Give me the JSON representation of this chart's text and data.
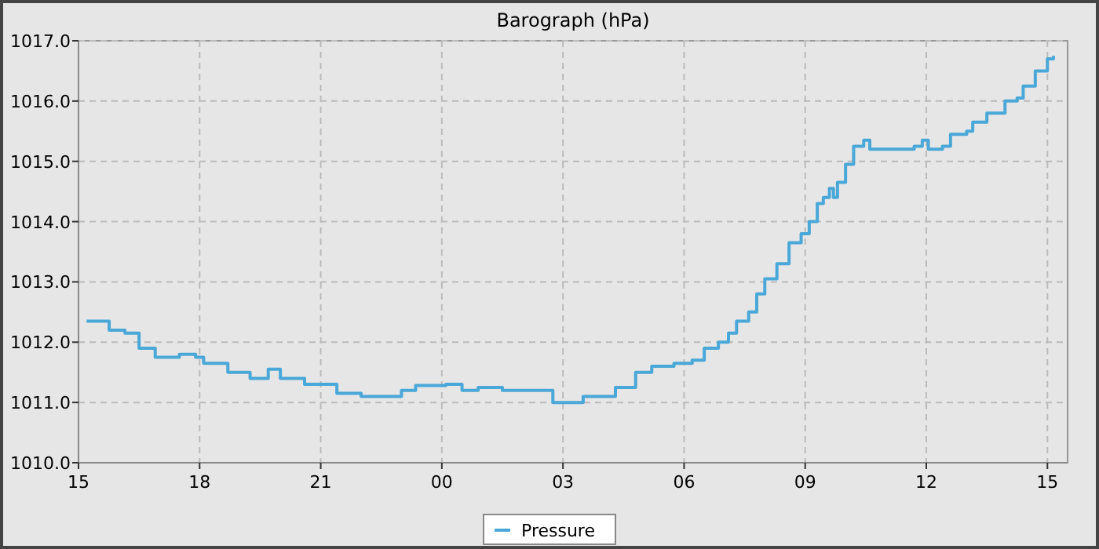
{
  "chart_data": {
    "type": "step",
    "title": "Barograph (hPa)",
    "xlim": [
      15,
      39.5
    ],
    "xticks": [
      {
        "value": 15,
        "label": "15"
      },
      {
        "value": 18,
        "label": "18"
      },
      {
        "value": 21,
        "label": "21"
      },
      {
        "value": 24,
        "label": "00"
      },
      {
        "value": 27,
        "label": "03"
      },
      {
        "value": 30,
        "label": "06"
      },
      {
        "value": 33,
        "label": "09"
      },
      {
        "value": 36,
        "label": "12"
      },
      {
        "value": 39,
        "label": "15"
      }
    ],
    "ylim": [
      1010,
      1017
    ],
    "yticks": [
      {
        "value": 1010,
        "label": "1010.0"
      },
      {
        "value": 1011,
        "label": "1011.0"
      },
      {
        "value": 1012,
        "label": "1012.0"
      },
      {
        "value": 1013,
        "label": "1013.0"
      },
      {
        "value": 1014,
        "label": "1014.0"
      },
      {
        "value": 1015,
        "label": "1015.0"
      },
      {
        "value": 1016,
        "label": "1016.0"
      },
      {
        "value": 1017,
        "label": "1017.0"
      }
    ],
    "grid": true,
    "legend": "bottom",
    "marker": "none",
    "line_style": "solid",
    "series": [
      {
        "name": "Pressure",
        "color": "#4aa8d8",
        "x": [
          15.2,
          15.76,
          16.15,
          16.5,
          16.9,
          17.5,
          17.9,
          18.1,
          18.7,
          19.25,
          19.7,
          20.0,
          20.6,
          21.2,
          21.4,
          22.0,
          22.6,
          23.0,
          23.35,
          24.1,
          24.5,
          24.9,
          25.5,
          26.45,
          26.75,
          27.05,
          27.5,
          28.0,
          28.3,
          28.8,
          29.2,
          29.75,
          30.2,
          30.5,
          30.85,
          31.1,
          31.3,
          31.6,
          31.8,
          32.0,
          32.3,
          32.6,
          32.9,
          33.1,
          33.3,
          33.45,
          33.6,
          33.7,
          33.8,
          34.0,
          34.2,
          34.45,
          34.6,
          35.2,
          35.7,
          35.9,
          36.05,
          36.4,
          36.6,
          37.0,
          37.15,
          37.5,
          37.95,
          38.25,
          38.4,
          38.7,
          39.0,
          39.15
        ],
        "values": [
          1012.35,
          1012.2,
          1012.15,
          1011.9,
          1011.75,
          1011.8,
          1011.75,
          1011.65,
          1011.5,
          1011.4,
          1011.55,
          1011.4,
          1011.3,
          1011.3,
          1011.15,
          1011.1,
          1011.1,
          1011.2,
          1011.28,
          1011.3,
          1011.2,
          1011.25,
          1011.2,
          1011.2,
          1011.0,
          1011.0,
          1011.1,
          1011.1,
          1011.25,
          1011.5,
          1011.6,
          1011.65,
          1011.7,
          1011.9,
          1012.0,
          1012.15,
          1012.35,
          1012.5,
          1012.8,
          1013.05,
          1013.3,
          1013.65,
          1013.8,
          1014.0,
          1014.3,
          1014.4,
          1014.55,
          1014.4,
          1014.65,
          1014.95,
          1015.25,
          1015.35,
          1015.2,
          1015.2,
          1015.25,
          1015.35,
          1015.2,
          1015.25,
          1015.45,
          1015.5,
          1015.65,
          1015.8,
          1016.0,
          1016.05,
          1016.25,
          1016.5,
          1016.7,
          1016.75
        ]
      }
    ]
  }
}
